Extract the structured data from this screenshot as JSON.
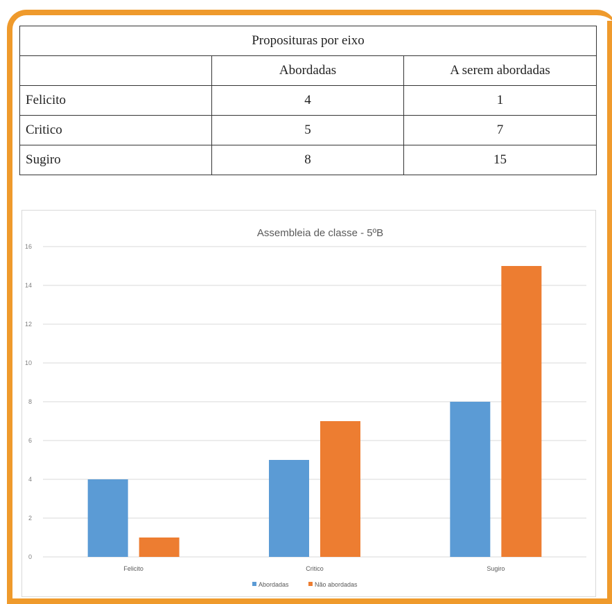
{
  "table": {
    "title": "Proposituras por eixo",
    "headers": [
      "",
      "Abordadas",
      "A serem abordadas"
    ],
    "rows": [
      {
        "label": "Felicito",
        "abordadas": "4",
        "a_serem": "1"
      },
      {
        "label": "Critico",
        "abordadas": "5",
        "a_serem": "7"
      },
      {
        "label": "Sugiro",
        "abordadas": "8",
        "a_serem": "15"
      }
    ]
  },
  "colors": {
    "frame": "#ef9a2c",
    "series_1": "#5b9bd5",
    "series_2": "#ed7d31",
    "grid": "#d9d9d9"
  },
  "chart_data": {
    "type": "bar",
    "title": "Assembleia de classe - 5ºB",
    "categories": [
      "Felicito",
      "Critico",
      "Sugiro"
    ],
    "series": [
      {
        "name": "Abordadas",
        "values": [
          4,
          5,
          8
        ],
        "color": "#5b9bd5"
      },
      {
        "name": "Não abordadas",
        "values": [
          1,
          7,
          15
        ],
        "color": "#ed7d31"
      }
    ],
    "ylim": [
      0,
      16
    ],
    "yticks": [
      0,
      2,
      4,
      6,
      8,
      10,
      12,
      14,
      16
    ],
    "xlabel": "",
    "ylabel": "",
    "grid": true,
    "legend": "bottom"
  }
}
